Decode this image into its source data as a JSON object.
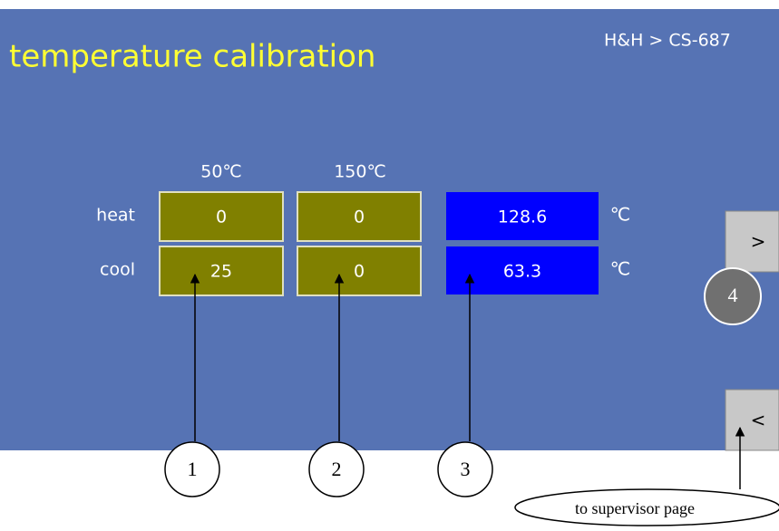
{
  "header": {
    "title": "temperature calibration",
    "breadcrumb": "H&H > CS-687"
  },
  "table": {
    "columns": [
      "50℃",
      "150℃"
    ],
    "rows": [
      {
        "label": "heat",
        "values": [
          0,
          0
        ],
        "reading": 128.6,
        "unit": "℃"
      },
      {
        "label": "cool",
        "values": [
          25,
          0
        ],
        "reading": 63.3,
        "unit": "℃"
      }
    ]
  },
  "buttons": {
    "next": ">",
    "back": "<"
  },
  "annotations": {
    "callouts": [
      "1",
      "2",
      "3",
      "4"
    ],
    "back_note": "to supervisor page"
  }
}
